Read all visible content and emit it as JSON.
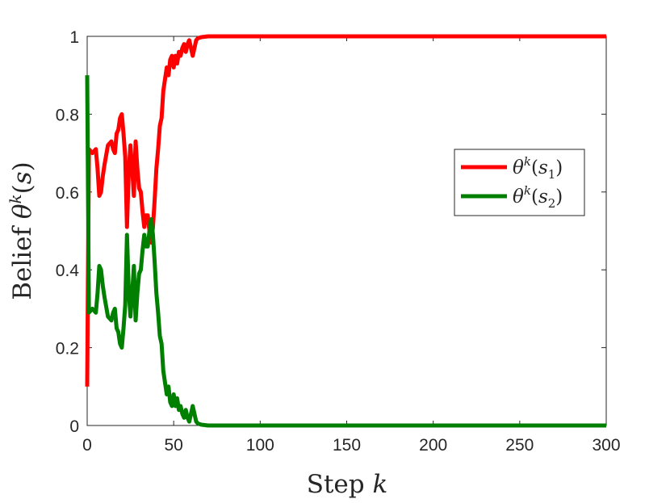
{
  "chart_data": {
    "type": "line",
    "xlabel": "Step k",
    "ylabel": "Belief θ^k(s)",
    "xlim": [
      0,
      300
    ],
    "ylim": [
      0,
      1
    ],
    "xticks": [
      0,
      50,
      100,
      150,
      200,
      250,
      300
    ],
    "yticks": [
      0,
      0.2,
      0.4,
      0.6,
      0.8,
      1
    ],
    "xtick_labels": [
      "0",
      "50",
      "100",
      "150",
      "200",
      "250",
      "300"
    ],
    "ytick_labels": [
      "0",
      "0.2",
      "0.4",
      "0.6",
      "0.8",
      "1"
    ],
    "grid": false,
    "legend_position": "right",
    "series": [
      {
        "name": "θ^k(s_1)",
        "color": "#ff0000",
        "points": [
          [
            0,
            0.1
          ],
          [
            1,
            0.71
          ],
          [
            3,
            0.7
          ],
          [
            5,
            0.71
          ],
          [
            6,
            0.66
          ],
          [
            7,
            0.59
          ],
          [
            8,
            0.6
          ],
          [
            9,
            0.64
          ],
          [
            10,
            0.67
          ],
          [
            12,
            0.72
          ],
          [
            14,
            0.73
          ],
          [
            15,
            0.71
          ],
          [
            16,
            0.7
          ],
          [
            17,
            0.75
          ],
          [
            18,
            0.76
          ],
          [
            19,
            0.79
          ],
          [
            20,
            0.8
          ],
          [
            21,
            0.75
          ],
          [
            22,
            0.69
          ],
          [
            23,
            0.51
          ],
          [
            24,
            0.65
          ],
          [
            25,
            0.72
          ],
          [
            26,
            0.66
          ],
          [
            27,
            0.59
          ],
          [
            28,
            0.73
          ],
          [
            29,
            0.66
          ],
          [
            30,
            0.61
          ],
          [
            31,
            0.6
          ],
          [
            32,
            0.55
          ],
          [
            33,
            0.51
          ],
          [
            34,
            0.54
          ],
          [
            35,
            0.54
          ],
          [
            36,
            0.5
          ],
          [
            37,
            0.47
          ],
          [
            38,
            0.51
          ],
          [
            39,
            0.58
          ],
          [
            40,
            0.66
          ],
          [
            41,
            0.71
          ],
          [
            42,
            0.77
          ],
          [
            43,
            0.79
          ],
          [
            44,
            0.86
          ],
          [
            45,
            0.89
          ],
          [
            46,
            0.92
          ],
          [
            47,
            0.9
          ],
          [
            48,
            0.94
          ],
          [
            49,
            0.95
          ],
          [
            50,
            0.92
          ],
          [
            51,
            0.95
          ],
          [
            52,
            0.93
          ],
          [
            53,
            0.96
          ],
          [
            54,
            0.95
          ],
          [
            55,
            0.97
          ],
          [
            56,
            0.98
          ],
          [
            57,
            0.96
          ],
          [
            58,
            0.98
          ],
          [
            59,
            0.99
          ],
          [
            60,
            0.97
          ],
          [
            61,
            0.95
          ],
          [
            62,
            0.97
          ],
          [
            63,
            0.99
          ],
          [
            64,
            0.995
          ],
          [
            66,
            0.998
          ],
          [
            70,
            1.0
          ],
          [
            300,
            1.0
          ]
        ]
      },
      {
        "name": "θ^k(s_2)",
        "color": "#007f00",
        "points": [
          [
            0,
            0.9
          ],
          [
            1,
            0.29
          ],
          [
            3,
            0.3
          ],
          [
            5,
            0.29
          ],
          [
            6,
            0.34
          ],
          [
            7,
            0.41
          ],
          [
            8,
            0.4
          ],
          [
            9,
            0.36
          ],
          [
            10,
            0.33
          ],
          [
            12,
            0.28
          ],
          [
            14,
            0.27
          ],
          [
            15,
            0.29
          ],
          [
            16,
            0.3
          ],
          [
            17,
            0.25
          ],
          [
            18,
            0.24
          ],
          [
            19,
            0.21
          ],
          [
            20,
            0.2
          ],
          [
            21,
            0.25
          ],
          [
            22,
            0.31
          ],
          [
            23,
            0.49
          ],
          [
            24,
            0.35
          ],
          [
            25,
            0.28
          ],
          [
            26,
            0.34
          ],
          [
            27,
            0.41
          ],
          [
            28,
            0.27
          ],
          [
            29,
            0.34
          ],
          [
            30,
            0.39
          ],
          [
            31,
            0.4
          ],
          [
            32,
            0.45
          ],
          [
            33,
            0.49
          ],
          [
            34,
            0.46
          ],
          [
            35,
            0.46
          ],
          [
            36,
            0.5
          ],
          [
            37,
            0.53
          ],
          [
            38,
            0.49
          ],
          [
            39,
            0.42
          ],
          [
            40,
            0.34
          ],
          [
            41,
            0.29
          ],
          [
            42,
            0.23
          ],
          [
            43,
            0.21
          ],
          [
            44,
            0.14
          ],
          [
            45,
            0.11
          ],
          [
            46,
            0.08
          ],
          [
            47,
            0.1
          ],
          [
            48,
            0.06
          ],
          [
            49,
            0.05
          ],
          [
            50,
            0.08
          ],
          [
            51,
            0.05
          ],
          [
            52,
            0.07
          ],
          [
            53,
            0.04
          ],
          [
            54,
            0.05
          ],
          [
            55,
            0.03
          ],
          [
            56,
            0.02
          ],
          [
            57,
            0.04
          ],
          [
            58,
            0.02
          ],
          [
            59,
            0.01
          ],
          [
            60,
            0.03
          ],
          [
            61,
            0.05
          ],
          [
            62,
            0.03
          ],
          [
            63,
            0.01
          ],
          [
            64,
            0.005
          ],
          [
            66,
            0.002
          ],
          [
            70,
            0.0
          ],
          [
            300,
            0.0
          ]
        ]
      }
    ]
  }
}
